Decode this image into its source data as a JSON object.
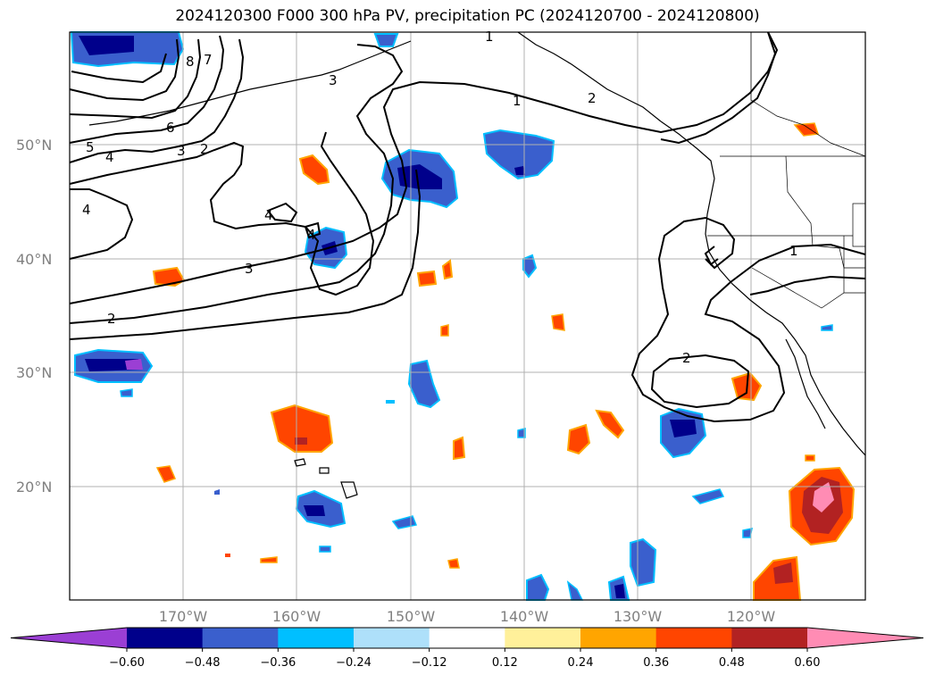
{
  "title": "2024120300 F000 300 hPa PV, precipitation PC (2024120700 - 2024120800)",
  "lat_labels": [
    "50°N",
    "40°N",
    "30°N",
    "20°N"
  ],
  "lon_labels": [
    "170°W",
    "160°W",
    "150°W",
    "140°W",
    "130°W",
    "120°W"
  ],
  "colorbar": {
    "ticks": [
      "−0.60",
      "−0.48",
      "−0.36",
      "−0.24",
      "−0.12",
      "0.12",
      "0.24",
      "0.36",
      "0.48",
      "0.60"
    ],
    "colors": [
      "#9b3fd4",
      "#00008b",
      "#3a5fcd",
      "#00bfff",
      "#aee0fa",
      "#ffffff",
      "#fff09a",
      "#ffa500",
      "#ff4500",
      "#b22222",
      "#ff8cb4"
    ]
  },
  "contour_labels": [
    "1",
    "1",
    "2",
    "2",
    "3",
    "4",
    "5",
    "6",
    "7",
    "8",
    "3",
    "2",
    "4",
    "4",
    "3",
    "2",
    "4",
    "1",
    "2"
  ],
  "palette": {
    "deep_purple": "#9b3fd4",
    "navy": "#00008b",
    "blue": "#3a5fcd",
    "sky": "#00bfff",
    "light_blue": "#aee0fa",
    "yellow": "#fff09a",
    "orange": "#ffa500",
    "red_orange": "#ff4500",
    "firebrick": "#b22222",
    "pink": "#ff8cb4"
  }
}
